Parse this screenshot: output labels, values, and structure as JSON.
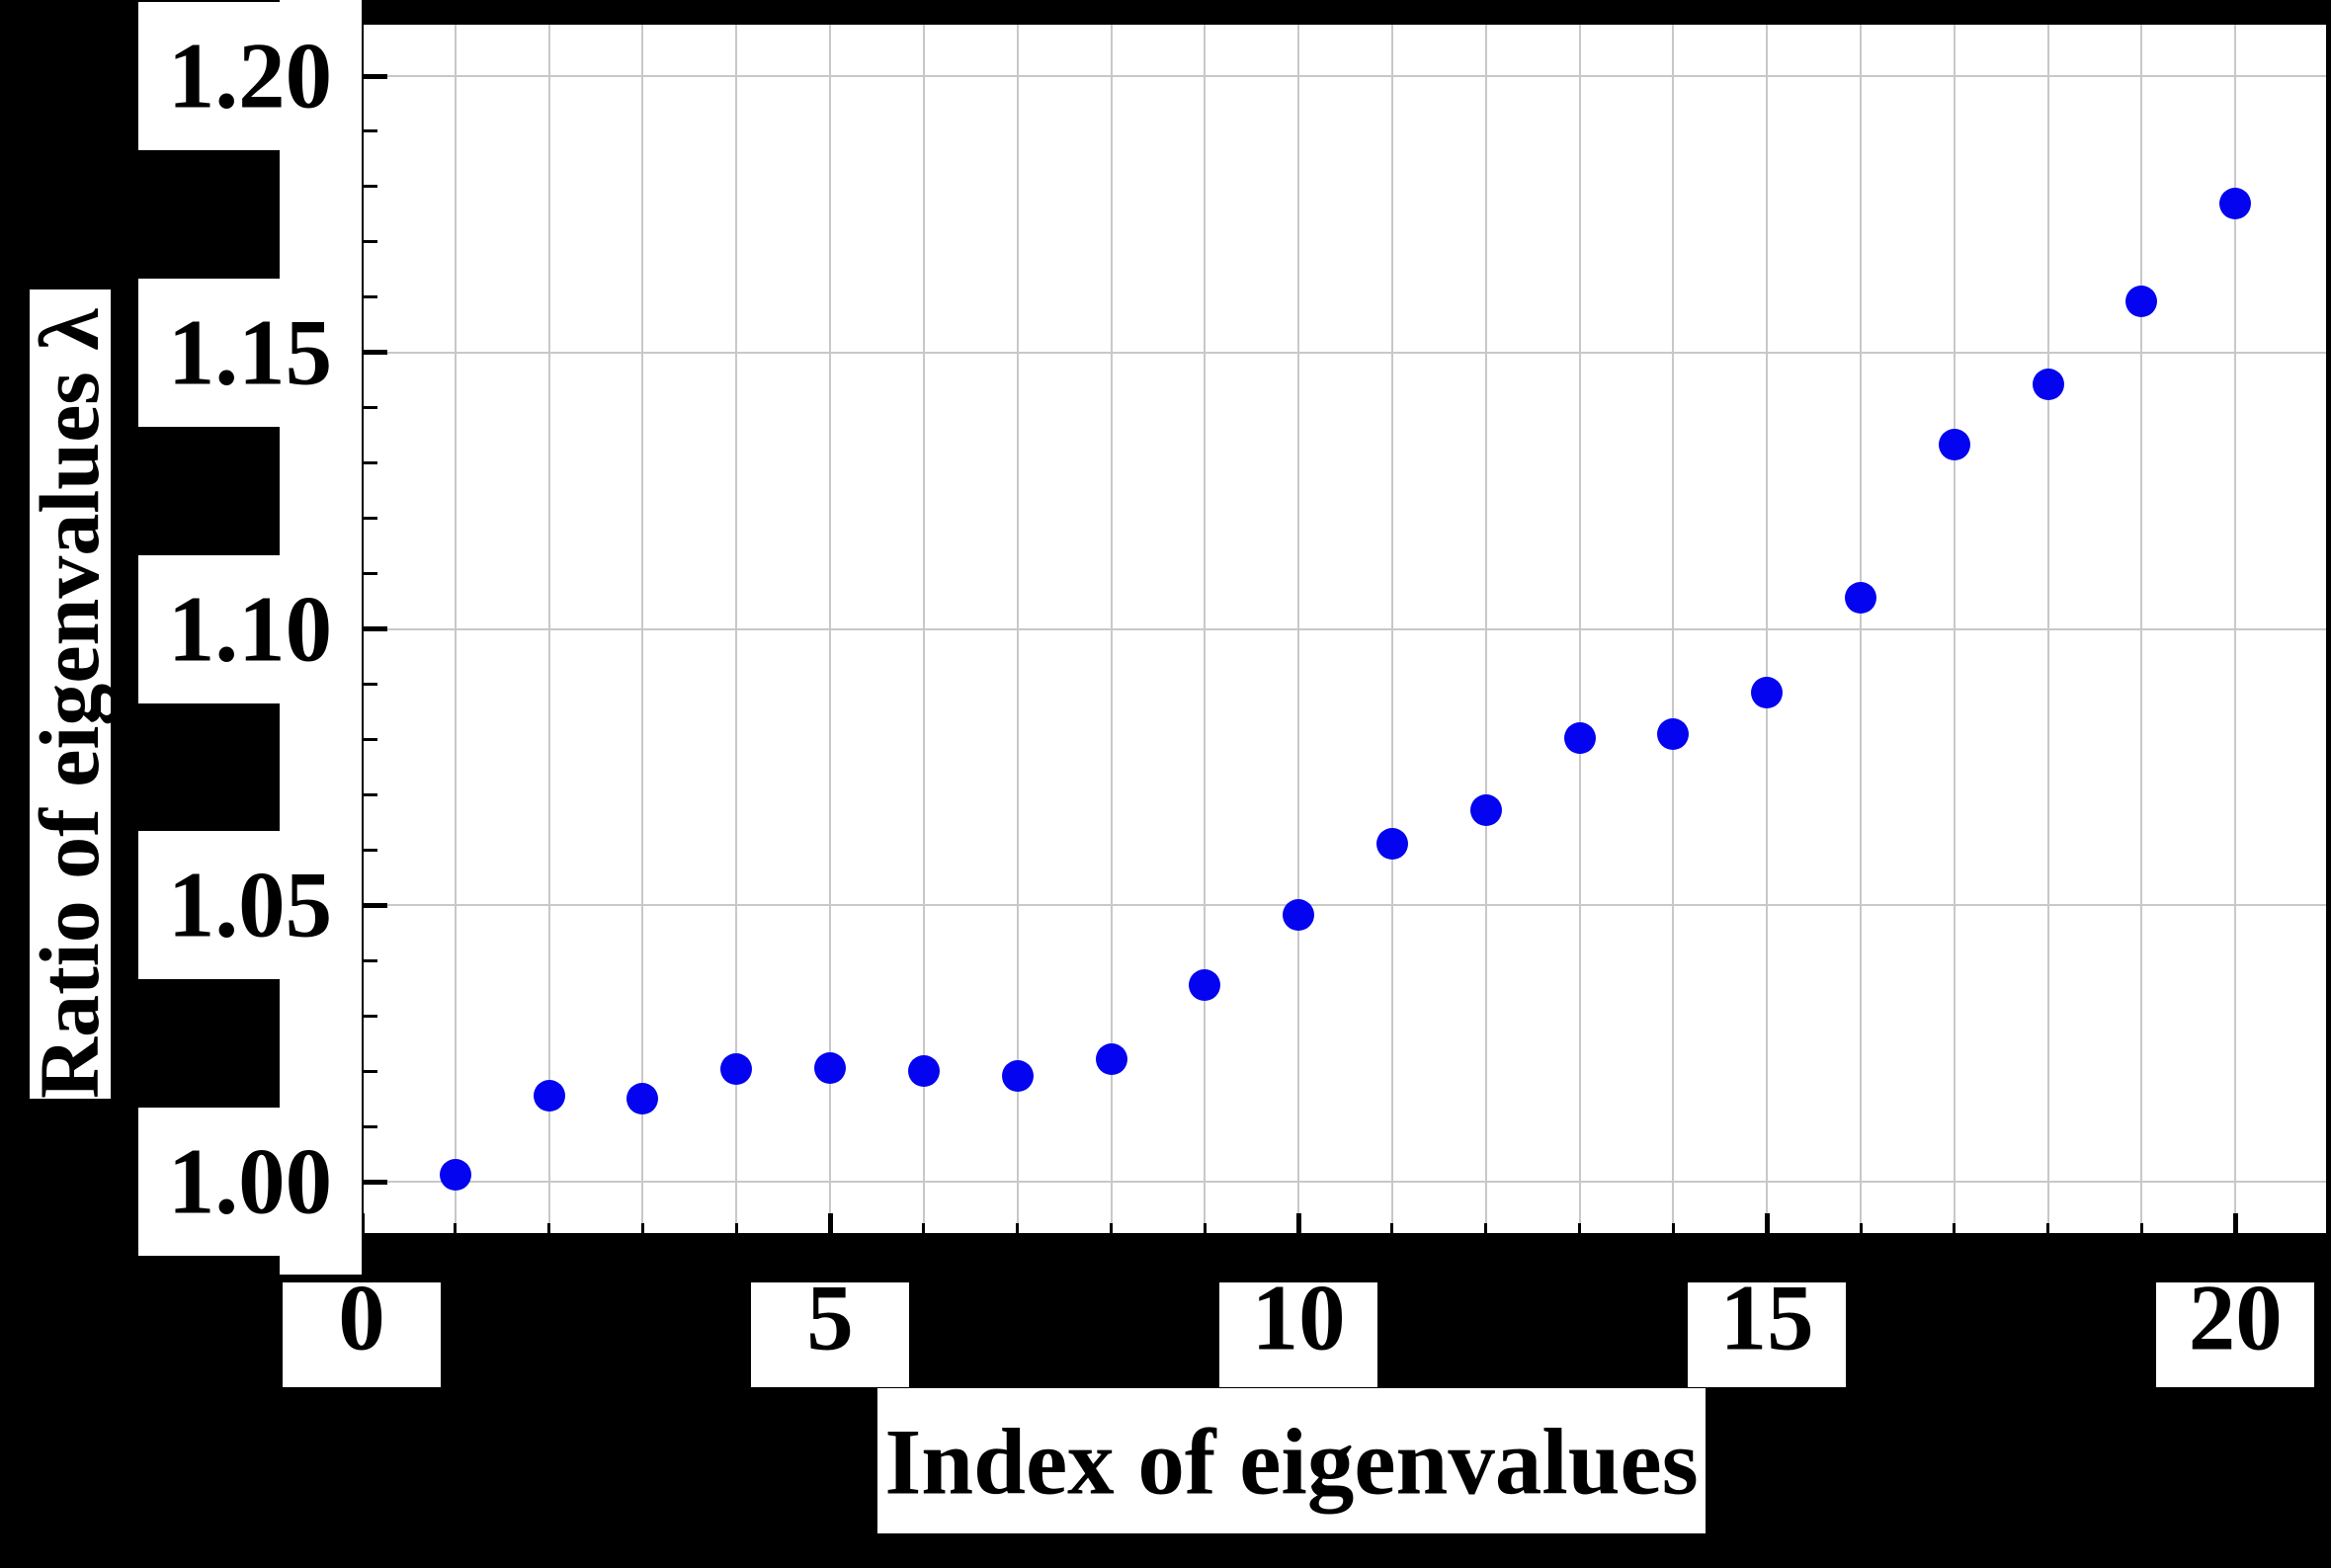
{
  "figure": {
    "background_color": "#000000",
    "plot_background_color": "#ffffff",
    "grid_color": "#c8c8c8",
    "axis_color": "#000000",
    "marker_color": "#0404f0"
  },
  "chart_data": {
    "type": "scatter",
    "title": "",
    "xlabel": "Index of eigenvalues",
    "ylabel": "Ratio of eigenvalues λ",
    "x": [
      1,
      2,
      3,
      4,
      5,
      6,
      7,
      8,
      9,
      10,
      11,
      12,
      13,
      14,
      15,
      16,
      17,
      18,
      19,
      20
    ],
    "y": [
      1.0013,
      1.0156,
      1.015,
      1.0204,
      1.0206,
      1.02,
      1.0191,
      1.0221,
      1.0356,
      1.0483,
      1.0611,
      1.0673,
      1.0802,
      1.0809,
      1.0885,
      1.1056,
      1.1333,
      1.1443,
      1.1592,
      1.1769
    ],
    "xlim": [
      0,
      21
    ],
    "ylim": [
      0.99,
      1.21
    ],
    "xticks_major": [
      0,
      5,
      10,
      15,
      20
    ],
    "yticks_major": [
      1.0,
      1.05,
      1.1,
      1.15,
      1.2
    ],
    "xtick_labels": [
      "0",
      "5",
      "10",
      "15",
      "20"
    ],
    "ytick_labels": [
      "1.00",
      "1.05",
      "1.10",
      "1.15",
      "1.20"
    ],
    "x_minor_step": 1,
    "y_minor_step": 0.01,
    "grid": "on",
    "legend": "none",
    "marker": "circle"
  }
}
